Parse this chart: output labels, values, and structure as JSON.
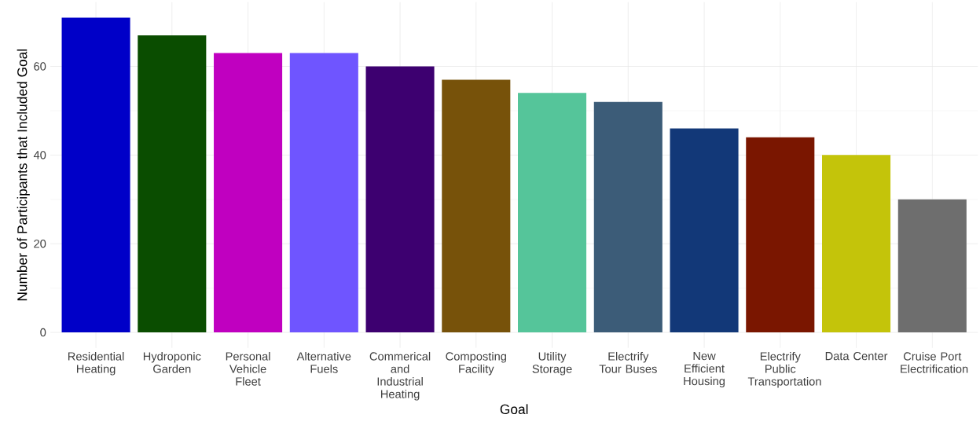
{
  "chart_data": {
    "type": "bar",
    "xlabel": "Goal",
    "ylabel": "Number of Participants that Included Goal",
    "categories": [
      "Residential Heating",
      "Hydroponic Garden",
      "Personal Vehicle Fleet",
      "Alternative Fuels",
      "Commerical and Industrial Heating",
      "Composting Facility",
      "Utility Storage",
      "Electrify Tour Buses",
      "New Efficient Housing",
      "Electrify Public Transportation",
      "Data Center",
      "Cruise Port Electrification"
    ],
    "values": [
      71,
      67,
      63,
      63,
      60,
      57,
      54,
      52,
      46,
      44,
      40,
      30
    ],
    "colors": [
      "#0000c8",
      "#0a4d00",
      "#c000c0",
      "#6f55ff",
      "#3d0070",
      "#77520a",
      "#55c59a",
      "#3c5c78",
      "#123878",
      "#7a1600",
      "#c4c40a",
      "#6e6e6e"
    ],
    "ylim": [
      -3.5,
      74.5
    ],
    "yticks": [
      0,
      20,
      40,
      60
    ],
    "grid": true
  }
}
